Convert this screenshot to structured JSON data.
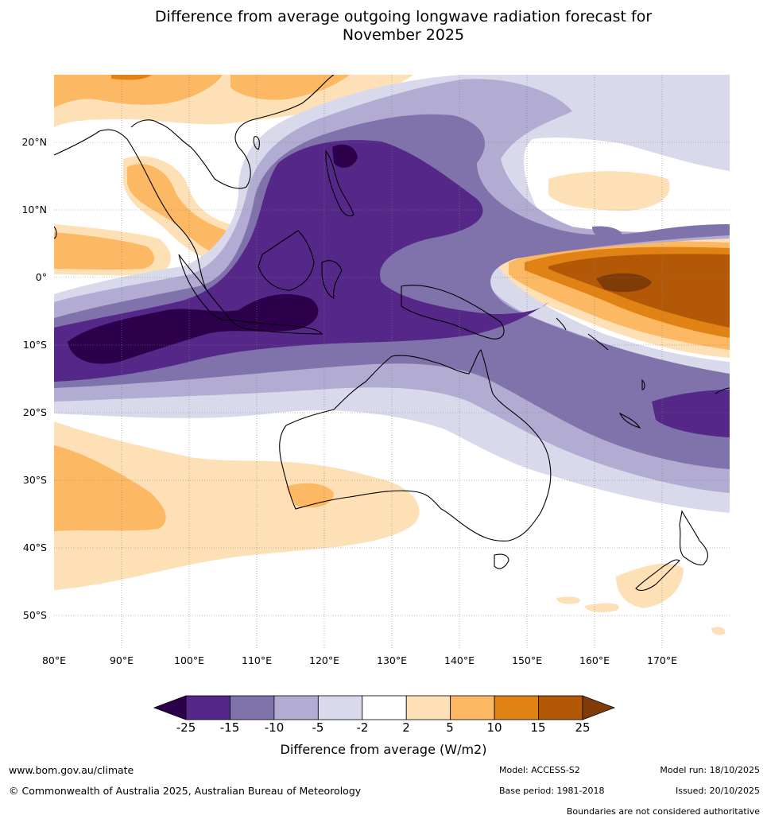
{
  "title_line1": "Difference from average outgoing longwave radiation forecast for",
  "title_line2": "November 2025",
  "map": {
    "lat_labels": [
      "20°N",
      "10°N",
      "0°",
      "10°S",
      "20°S",
      "30°S",
      "40°S",
      "50°S"
    ],
    "lon_labels": [
      "80°E",
      "90°E",
      "100°E",
      "110°E",
      "120°E",
      "130°E",
      "140°E",
      "150°E",
      "160°E",
      "170°E"
    ]
  },
  "colorbar": {
    "ticks": [
      "-25",
      "-15",
      "-10",
      "-5",
      "-2",
      "2",
      "5",
      "10",
      "15",
      "25"
    ],
    "label": "Difference from average (W/m2)",
    "colors": [
      "#2d004b",
      "#542788",
      "#8073ac",
      "#b2abd2",
      "#d8daeb",
      "#ffffff",
      "#fee0b6",
      "#fdb863",
      "#e08214",
      "#b35806",
      "#7f3b08"
    ]
  },
  "footer": {
    "url": "www.bom.gov.au/climate",
    "copyright": "© Commonwealth of Australia 2025, Australian Bureau of Meteorology",
    "model": "Model: ACCESS-S2",
    "base_period": "Base period: 1981-2018",
    "model_run": "Model run: 18/10/2025",
    "issued": "Issued: 20/10/2025",
    "disclaimer": "Boundaries are not considered authoritative"
  }
}
